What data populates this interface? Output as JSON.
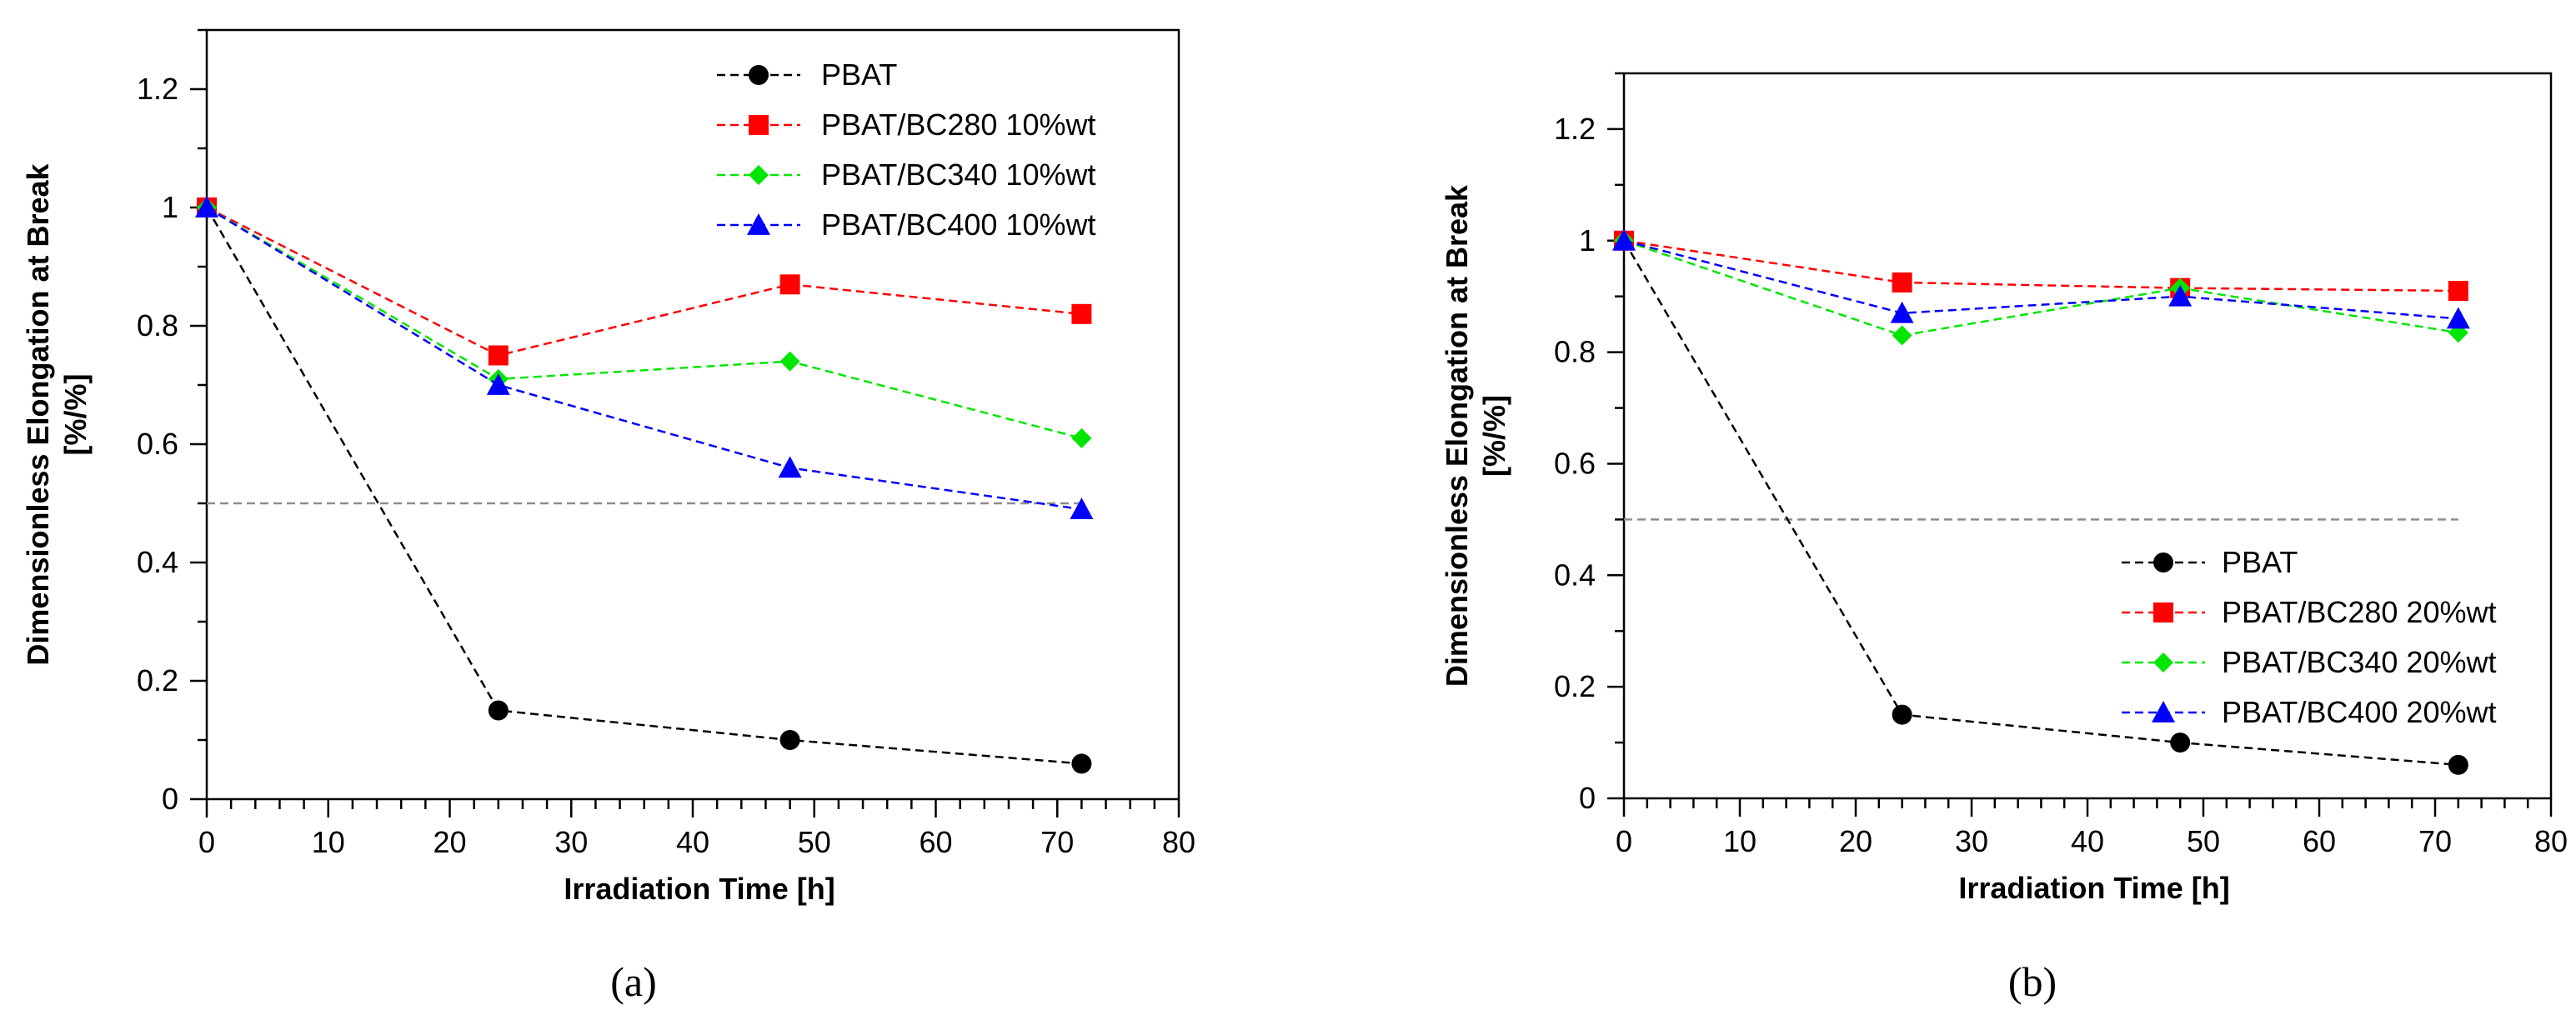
{
  "chart_data": [
    {
      "type": "line",
      "panel_label": "(a)",
      "xlabel": "Irradiation Time [h]",
      "ylabel_line1": "Dimensionless Elongation at Break",
      "ylabel_line2": "[%/%]",
      "xlim": [
        0,
        80
      ],
      "ylim": [
        0,
        1.3
      ],
      "xticks": [
        0,
        10,
        20,
        30,
        40,
        50,
        60,
        70,
        80
      ],
      "xtick_labels": [
        "0",
        "10",
        "20",
        "30",
        "40",
        "50",
        "60",
        "70",
        "80"
      ],
      "yticks": [
        0,
        0.2,
        0.4,
        0.6,
        0.8,
        1,
        1.2
      ],
      "ytick_labels": [
        "0",
        "0.2",
        "0.4",
        "0.6",
        "0.8",
        "1",
        "1.2"
      ],
      "reference_line": {
        "y": 0.5,
        "x_range": [
          0,
          72
        ],
        "color": "#8c8c8c"
      },
      "legend_position": "top-right",
      "x": [
        0,
        24,
        48,
        72
      ],
      "series": [
        {
          "name": "PBAT",
          "values": [
            1.0,
            0.15,
            0.1,
            0.06
          ],
          "color": "#000000",
          "marker": "circle"
        },
        {
          "name": "PBAT/BC280 10%wt",
          "values": [
            1.0,
            0.75,
            0.87,
            0.82
          ],
          "color": "#ff0000",
          "marker": "square"
        },
        {
          "name": "PBAT/BC340 10%wt",
          "values": [
            1.0,
            0.71,
            0.74,
            0.61
          ],
          "color": "#00e600",
          "marker": "diamond"
        },
        {
          "name": "PBAT/BC400 10%wt",
          "values": [
            1.0,
            0.7,
            0.56,
            0.49
          ],
          "color": "#0000ff",
          "marker": "triangle"
        }
      ]
    },
    {
      "type": "line",
      "panel_label": "(b)",
      "xlabel": "Irradiation Time [h]",
      "ylabel_line1": "Dimensionless Elongation at Break",
      "ylabel_line2": "[%/%]",
      "xlim": [
        0,
        80
      ],
      "ylim": [
        0,
        1.3
      ],
      "xticks": [
        0,
        10,
        20,
        30,
        40,
        50,
        60,
        70,
        80
      ],
      "xtick_labels": [
        "0",
        "10",
        "20",
        "30",
        "40",
        "50",
        "60",
        "70",
        "80"
      ],
      "yticks": [
        0,
        0.2,
        0.4,
        0.6,
        0.8,
        1,
        1.2
      ],
      "ytick_labels": [
        "0",
        "0.2",
        "0.4",
        "0.6",
        "0.8",
        "1",
        "1.2"
      ],
      "reference_line": {
        "y": 0.5,
        "x_range": [
          0,
          72
        ],
        "color": "#8c8c8c"
      },
      "legend_position": "bottom-right",
      "x": [
        0,
        24,
        48,
        72
      ],
      "series": [
        {
          "name": "PBAT",
          "values": [
            1.0,
            0.15,
            0.1,
            0.06
          ],
          "color": "#000000",
          "marker": "circle"
        },
        {
          "name": "PBAT/BC280 20%wt",
          "values": [
            1.0,
            0.925,
            0.915,
            0.91
          ],
          "color": "#ff0000",
          "marker": "square"
        },
        {
          "name": "PBAT/BC340 20%wt",
          "values": [
            1.0,
            0.83,
            0.915,
            0.835
          ],
          "color": "#00e600",
          "marker": "diamond"
        },
        {
          "name": "PBAT/BC400 20%wt",
          "values": [
            1.0,
            0.87,
            0.9,
            0.86
          ],
          "color": "#0000ff",
          "marker": "triangle"
        }
      ]
    }
  ]
}
